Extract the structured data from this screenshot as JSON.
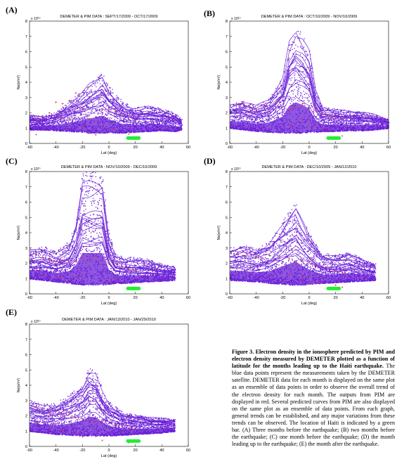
{
  "figure": {
    "caption_title": "Figure 3. Electron density in the ionosphere predicted by PIM and electron density measured by DEMETER plotted as a function of latitude for the months leading up to the Haiti earthquake.",
    "caption_body": "The blue data points represent the measurements taken by the DEMETER satellite. DEMETER data for each month is displayed on the same plot as an ensemble of data points in order to observe the overall trend of the electron density for each month. The outputs from PIM are displayed in red. Several predicted curves from PIM are also displayed on the same plot as an ensemble of data points. From each graph, general trends can be established, and any major variations from these trends can be observed. The location of Haiti is indicated by a green bar. (A) Three months before the earthquake; (B) two months before the earthquake; (C) one month before the earthquake; (D) the month leading up to the earthquake; (E) the month after the earthquake."
  },
  "colors": {
    "demeter": "#6a1fd6",
    "pim": "#e8392f",
    "haiti": "#22ee33"
  },
  "chart_data": [
    {
      "type": "scatter",
      "panel": "(A)",
      "title": "DEMETER & PIM DATA : SEPT/17/2009 - OCT/17/2009",
      "xlabel": "Lat (deg)",
      "ylabel": "Ne(e/m³)",
      "exponent": "x 10¹⁰",
      "xlim": [
        -60,
        60
      ],
      "ylim": [
        0,
        8
      ],
      "xticks": [
        "-60",
        "-40",
        "-20",
        "0",
        "20",
        "40",
        "60"
      ],
      "yticks": [
        "0",
        "1",
        "2",
        "3",
        "4",
        "5",
        "6",
        "7",
        "8"
      ],
      "series": [
        {
          "kind": "envelope",
          "x": [
            -60,
            -50,
            -40,
            -30,
            -20,
            -15,
            -10,
            -5,
            0,
            10,
            20,
            30,
            40,
            50,
            55
          ],
          "low": [
            0.9,
            0.9,
            0.85,
            0.8,
            0.75,
            0.7,
            0.7,
            0.7,
            0.7,
            0.7,
            0.75,
            0.8,
            0.85,
            0.8,
            0.9
          ],
          "high": [
            1.9,
            1.8,
            2.1,
            2.8,
            3.5,
            4.0,
            4.3,
            4.7,
            3.8,
            2.8,
            2.4,
            2.5,
            2.3,
            2.0,
            1.6
          ]
        },
        {
          "kind": "pim",
          "x": [
            -55,
            -50,
            -45,
            -40,
            -35,
            -30,
            -25,
            -20,
            -15,
            -10,
            -5,
            0,
            5,
            10,
            15,
            20
          ],
          "y": [
            1.6,
            1.8,
            2.0,
            2.7,
            2.6,
            2.8,
            3.3,
            2.2,
            1.6,
            1.7,
            2.2,
            2.2,
            2.1,
            1.8,
            1.7,
            1.5
          ]
        }
      ],
      "haiti": [
        13,
        24
      ]
    },
    {
      "type": "scatter",
      "panel": "(B)",
      "title": "DEMETER & PIM DATA : OCT/10/2009 - NOV/10/2009",
      "xlabel": "Lat (deg)",
      "ylabel": "Ne(e/m³)",
      "exponent": "x 10¹⁰",
      "xlim": [
        -60,
        60
      ],
      "ylim": [
        0,
        8
      ],
      "xticks": [
        "-60",
        "-40",
        "-20",
        "0",
        "20",
        "40",
        "60"
      ],
      "yticks": [
        "0",
        "1",
        "2",
        "3",
        "4",
        "5",
        "6",
        "7",
        "8"
      ],
      "series": [
        {
          "kind": "envelope",
          "x": [
            -60,
            -50,
            -40,
            -30,
            -20,
            -15,
            -10,
            -5,
            0,
            5,
            10,
            20,
            30,
            40,
            50,
            60
          ],
          "low": [
            1.0,
            0.9,
            0.8,
            0.75,
            0.7,
            0.7,
            0.7,
            0.7,
            0.75,
            0.75,
            0.8,
            0.8,
            0.85,
            0.85,
            0.9,
            1.0
          ],
          "high": [
            2.6,
            2.8,
            2.5,
            3.0,
            4.5,
            7.0,
            7.8,
            7.2,
            6.2,
            3.5,
            2.4,
            2.3,
            2.2,
            2.1,
            1.9,
            1.6
          ]
        },
        {
          "kind": "pim",
          "x": [
            -55,
            -50,
            -45,
            -40,
            -35,
            -30,
            -25,
            -20,
            -15,
            -10,
            -5,
            0,
            5,
            10,
            15,
            20,
            25
          ],
          "y": [
            2.5,
            2.6,
            2.4,
            2.2,
            2.5,
            2.3,
            2.6,
            2.4,
            2.2,
            2.4,
            2.6,
            2.3,
            2.2,
            2.0,
            1.8,
            1.7,
            1.6
          ]
        }
      ],
      "haiti": [
        13,
        24
      ]
    },
    {
      "type": "scatter",
      "panel": "(C)",
      "title": "DEMETER & PIM DATA : NOV/10/2009 - DEC/10/2009",
      "xlabel": "Lat (deg)",
      "ylabel": "Ne(e/m³)",
      "exponent": "x 10¹⁰",
      "xlim": [
        -60,
        60
      ],
      "ylim": [
        0,
        8
      ],
      "xticks": [
        "-60",
        "-40",
        "-20",
        "0",
        "20",
        "40",
        "60"
      ],
      "yticks": [
        "0",
        "1",
        "2",
        "3",
        "4",
        "5",
        "6",
        "7",
        "8"
      ],
      "series": [
        {
          "kind": "envelope",
          "x": [
            -60,
            -50,
            -40,
            -30,
            -25,
            -20,
            -15,
            -10,
            -5,
            0,
            5,
            10,
            20,
            30,
            40,
            50
          ],
          "low": [
            1.0,
            0.9,
            0.8,
            0.7,
            0.65,
            0.6,
            0.6,
            0.6,
            0.6,
            0.65,
            0.7,
            0.7,
            0.75,
            0.8,
            0.85,
            0.9
          ],
          "high": [
            3.0,
            3.2,
            2.8,
            3.5,
            5.0,
            8.0,
            8.0,
            8.0,
            8.0,
            4.0,
            2.6,
            2.5,
            2.4,
            2.3,
            2.0,
            1.8
          ]
        },
        {
          "kind": "pim",
          "x": [
            -55,
            -50,
            -45,
            -40,
            -35,
            -30,
            -25,
            -20,
            -15,
            -10,
            -5,
            0,
            5,
            10,
            15,
            20
          ],
          "y": [
            2.6,
            2.4,
            2.3,
            2.1,
            2.2,
            2.0,
            2.1,
            2.3,
            2.2,
            2.4,
            2.2,
            2.1,
            2.0,
            1.8,
            1.6,
            1.5
          ]
        }
      ],
      "haiti": [
        13,
        24
      ]
    },
    {
      "type": "scatter",
      "panel": "(D)",
      "title": "DEMETER & PIM DATA : DEC/10/2009 - JAN/12/2010",
      "xlabel": "Lat (deg)",
      "ylabel": "Ne(e/m³)",
      "exponent": "x 10¹⁰",
      "xlim": [
        -60,
        60
      ],
      "ylim": [
        0,
        8
      ],
      "xticks": [
        "-60",
        "-40",
        "-20",
        "0",
        "20",
        "40",
        "60"
      ],
      "yticks": [
        "0",
        "1",
        "2",
        "3",
        "4",
        "5",
        "6",
        "7",
        "8"
      ],
      "series": [
        {
          "kind": "envelope",
          "x": [
            -60,
            -50,
            -40,
            -30,
            -20,
            -15,
            -10,
            -5,
            0,
            10,
            20,
            30,
            40,
            50
          ],
          "low": [
            0.9,
            0.85,
            0.8,
            0.7,
            0.65,
            0.6,
            0.6,
            0.6,
            0.65,
            0.7,
            0.75,
            0.8,
            0.85,
            0.9
          ],
          "high": [
            3.0,
            3.2,
            3.0,
            3.5,
            4.8,
            5.5,
            6.0,
            5.0,
            4.0,
            2.7,
            2.6,
            2.8,
            2.3,
            2.0
          ]
        },
        {
          "kind": "pim",
          "x": [
            -55,
            -50,
            -45,
            -40,
            -35,
            -30,
            -25,
            -20,
            -15,
            -10,
            -5,
            0,
            5,
            10,
            15,
            20,
            25
          ],
          "y": [
            2.6,
            2.5,
            2.7,
            2.4,
            2.3,
            2.5,
            2.2,
            2.1,
            2.3,
            2.0,
            2.2,
            2.1,
            1.9,
            1.8,
            1.7,
            1.5,
            1.4
          ]
        }
      ],
      "haiti": [
        13,
        24
      ]
    },
    {
      "type": "scatter",
      "panel": "(E)",
      "title": "DEMETER & PIM DATA : JAN/13/2010 - JAN/29/2010",
      "xlabel": "Lat (deg)",
      "ylabel": "Ne(e/m³)",
      "exponent": "x 10¹⁰",
      "xlim": [
        -60,
        60
      ],
      "ylim": [
        0,
        8
      ],
      "xticks": [
        "-60",
        "-40",
        "-20",
        "0",
        "20",
        "40",
        "60"
      ],
      "yticks": [
        "0",
        "1",
        "2",
        "3",
        "4",
        "5",
        "6",
        "7",
        "8"
      ],
      "series": [
        {
          "kind": "envelope",
          "x": [
            -60,
            -50,
            -40,
            -30,
            -20,
            -15,
            -10,
            -5,
            0,
            10,
            20,
            30,
            40,
            50
          ],
          "low": [
            1.0,
            0.9,
            0.8,
            0.75,
            0.7,
            0.7,
            0.7,
            0.7,
            0.7,
            0.75,
            0.8,
            0.85,
            0.9,
            1.0
          ],
          "high": [
            3.0,
            2.8,
            2.9,
            3.4,
            4.2,
            5.2,
            5.0,
            3.8,
            3.0,
            2.3,
            2.1,
            2.0,
            1.9,
            1.8
          ]
        },
        {
          "kind": "pim",
          "x": [
            -55,
            -50,
            -45,
            -40,
            -35,
            -30,
            -25,
            -20,
            -15,
            -10,
            -5,
            0,
            5,
            10,
            15,
            20
          ],
          "y": [
            2.6,
            2.4,
            2.2,
            2.3,
            2.0,
            2.1,
            1.9,
            1.8,
            1.7,
            1.6,
            1.6,
            1.5,
            1.4,
            1.3,
            1.2,
            1.1
          ]
        }
      ],
      "haiti": [
        13,
        24
      ]
    }
  ]
}
